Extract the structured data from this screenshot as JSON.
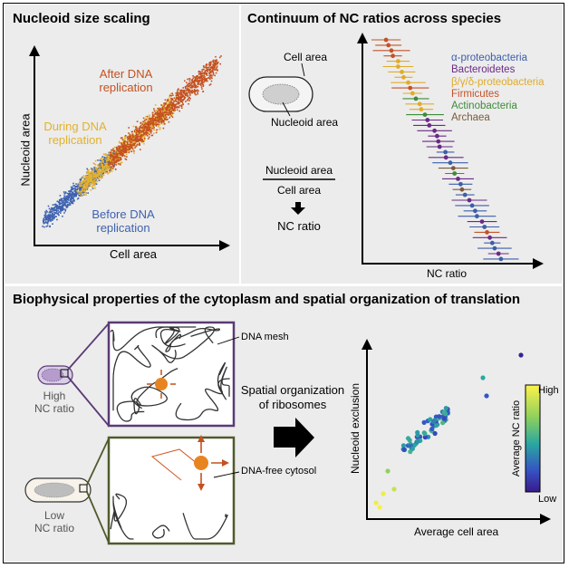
{
  "panel_a": {
    "title": "Nucleoid size scaling",
    "x_axis": "Cell area",
    "y_axis": "Nucleoid area",
    "label_after": "After DNA replication",
    "label_after_1": "After DNA",
    "label_after_2": "replication",
    "label_during_1": "During DNA",
    "label_during_2": "replication",
    "label_before_1": "Before DNA",
    "label_before_2": "replication"
  },
  "panel_b": {
    "title": "Continuum of NC ratios across species",
    "cell_area": "Cell area",
    "nucleoid_area": "Nucleoid area",
    "numerator": "Nucleoid area",
    "denominator": "Cell area",
    "result": "NC ratio",
    "x_axis": "NC ratio",
    "legend": [
      {
        "name": "α-proteobacteria",
        "color": "#3d5ea9"
      },
      {
        "name": "Bacteroidetes",
        "color": "#6a2a86"
      },
      {
        "name": "β/γ/δ-proteobacteria",
        "color": "#e0ab2a"
      },
      {
        "name": "Firmicutes",
        "color": "#c45227"
      },
      {
        "name": "Actinobacteria",
        "color": "#3f8a3a"
      },
      {
        "name": "Archaea",
        "color": "#7a5a3a"
      }
    ]
  },
  "panel_c": {
    "title": "Biophysical properties of the cytoplasm and spatial organization of translation",
    "high_1": "High",
    "high_2": "NC ratio",
    "low_1": "Low",
    "low_2": "NC ratio",
    "dna_mesh": "DNA mesh",
    "dna_free": "DNA-free cytosol",
    "spatial_1": "Spatial organization",
    "spatial_2": "of ribosomes",
    "y_axis": "Nucleoid exclusion",
    "x_axis": "Average cell area",
    "colorbar_label": "Average NC ratio",
    "colorbar_high": "High",
    "colorbar_low": "Low"
  },
  "colors": {
    "panel_bg": "#ececec",
    "after": "#c4511f",
    "during": "#e3b12d",
    "before": "#3e62b0",
    "mesh_high_border": "#5b3a74",
    "mesh_low_border": "#4f5b2c",
    "particle": "#e8841f"
  }
}
